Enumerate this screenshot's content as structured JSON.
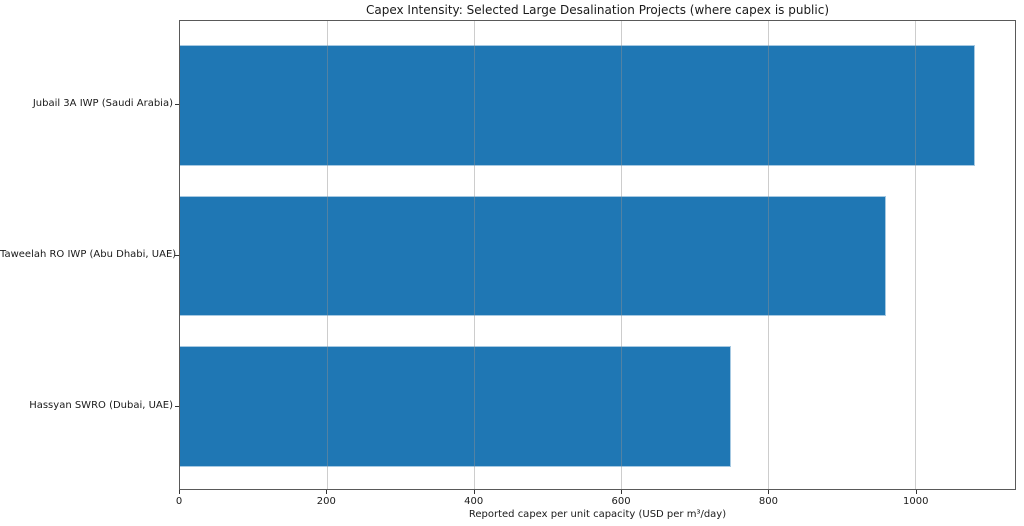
{
  "figure": {
    "kind": "matplotlib-style static chart image",
    "background": "#ffffff"
  },
  "chart_data": {
    "type": "bar",
    "orientation": "horizontal",
    "title": "Capex Intensity: Selected Large Desalination Projects (where capex is public)",
    "xlabel": "Reported capex per unit capacity (USD per m³/day)",
    "ylabel": "",
    "categories": [
      "Jubail 3A IWP (Saudi Arabia)",
      "Taweelah RO IWP (Abu Dhabi, UAE)",
      "Hassyan SWRO (Dubai, UAE)"
    ],
    "values": [
      1082,
      960,
      749
    ],
    "xlim": [
      0,
      1136
    ],
    "xticks": [
      0,
      200,
      400,
      600,
      800,
      1000
    ],
    "grid": true,
    "grid_axis": "x",
    "legend": null,
    "colors": {
      "bar_fill": "#1f77b4",
      "bar_edge": "#a6c9e2",
      "gridline": "#d9d9d9",
      "spine": "#595959",
      "text": "#1a1a1a"
    }
  }
}
